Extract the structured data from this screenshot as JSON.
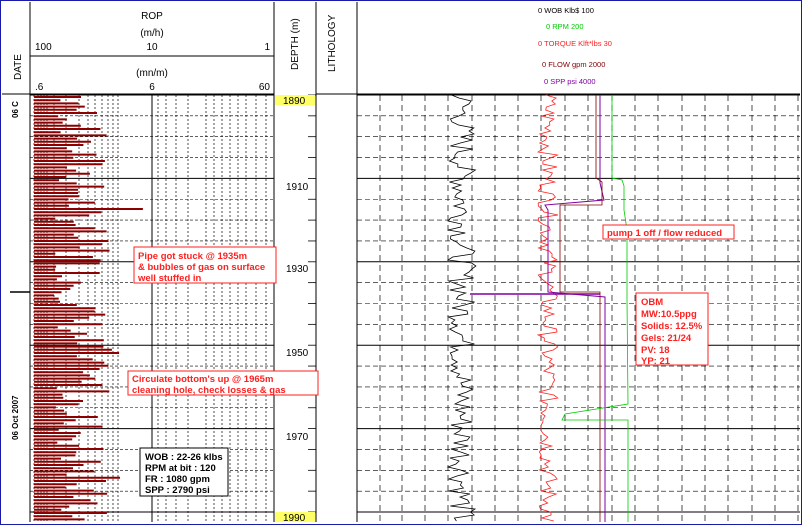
{
  "chart_data": {
    "type": "line",
    "track_headers": {
      "date": "DATE",
      "rop_title": "ROP",
      "rop_unit_top": "(m/h)",
      "rop_scale_top": [
        "100",
        "10",
        "1"
      ],
      "rop_unit_bottom": "(mn/m)",
      "rop_scale_bottom": [
        ".6",
        "6",
        "60"
      ],
      "depth": "DEPTH (m)",
      "lithology": "LITHOLOGY"
    },
    "depth_range": [
      "1890",
      "1990"
    ],
    "depth_ticks": [
      "1910",
      "1930",
      "1950",
      "1970"
    ],
    "date_labels": [
      "06 C",
      "06 Oct 2007"
    ],
    "drilling_legend": [
      {
        "text": "0  WOB Klb$   100",
        "color": "#000000"
      },
      {
        "text": "0    RPM       200",
        "color": "#00cc00"
      },
      {
        "text": "0  TORQUE Klft*lbs 30",
        "color": "#ff2020"
      },
      {
        "text": "0  FLOW  gpm  2000",
        "color": "#800000"
      },
      {
        "text": "0  SPP psi   4000",
        "color": "#8000a0"
      }
    ],
    "annotations": [
      {
        "lines": [
          "Pipe got stuck @ 1935m",
          "& bubbles of gas on surface",
          "well stuffed in"
        ],
        "color": "#ff2020"
      },
      {
        "lines": [
          "Circulate bottom's up @ 1965m",
          "cleaning hole, check losses & gas"
        ],
        "color": "#ff2020"
      },
      {
        "lines": [
          "pump 1 off / flow reduced"
        ],
        "color": "#ff2020"
      },
      {
        "lines": [
          "OBM",
          "MW:10.5ppg",
          "Solids: 12.5%",
          "Gels: 21/24",
          "PV: 18",
          "YP: 21"
        ],
        "color": "#ff2020"
      },
      {
        "lines": [
          "WOB : 22-26 klbs",
          "RPM at bit : 120",
          "FR  : 1080 gpm",
          "SPP : 2790 psi"
        ],
        "color": "#000000"
      }
    ],
    "series": [
      {
        "name": "WOB",
        "color": "#000000",
        "scale": [
          0,
          100
        ]
      },
      {
        "name": "RPM",
        "color": "#00cc00",
        "scale": [
          0,
          200
        ]
      },
      {
        "name": "TORQUE",
        "color": "#ff2020",
        "scale": [
          0,
          30
        ]
      },
      {
        "name": "FLOW",
        "color": "#800000",
        "scale": [
          0,
          2000
        ]
      },
      {
        "name": "SPP",
        "color": "#8000a0",
        "scale": [
          0,
          4000
        ]
      }
    ],
    "colors": {
      "rop": "#8b0000",
      "border": "#1a1aa8",
      "depth_box": "#ffff66"
    }
  }
}
